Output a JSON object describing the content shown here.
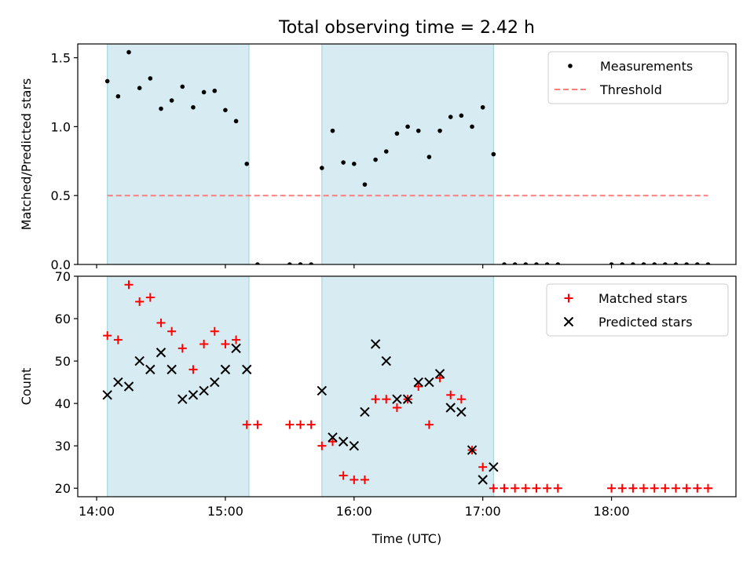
{
  "figure": {
    "title": "Total observing time = 2.42 h"
  },
  "chart_data": [
    {
      "type": "scatter",
      "ylabel": "Matched/Predicted stars",
      "xlabel": "",
      "xlim": [
        "14:00",
        "19:00"
      ],
      "xticks": [
        "14:00",
        "15:00",
        "16:00",
        "17:00",
        "18:00"
      ],
      "ylim": [
        0,
        1.6
      ],
      "yticks": [
        "0.0",
        "0.5",
        "1.0",
        "1.5"
      ],
      "legend": {
        "position": "top-right",
        "entries": [
          "Measurements",
          "Threshold"
        ]
      },
      "observing_windows": [
        [
          "14:05",
          "15:11"
        ],
        [
          "15:45",
          "17:05"
        ]
      ],
      "series": [
        {
          "name": "Measurements",
          "color": "#000000",
          "marker": "dot",
          "x": [
            "14:05",
            "14:10",
            "14:15",
            "14:20",
            "14:25",
            "14:30",
            "14:35",
            "14:40",
            "14:45",
            "14:50",
            "14:55",
            "15:00",
            "15:05",
            "15:10",
            "15:15",
            "15:30",
            "15:35",
            "15:40",
            "15:45",
            "15:50",
            "15:55",
            "16:00",
            "16:05",
            "16:10",
            "16:15",
            "16:20",
            "16:25",
            "16:30",
            "16:35",
            "16:40",
            "16:45",
            "16:50",
            "16:55",
            "17:00",
            "17:05",
            "17:10",
            "17:15",
            "17:20",
            "17:25",
            "17:30",
            "17:35",
            "18:00",
            "18:05",
            "18:10",
            "18:15",
            "18:20",
            "18:25",
            "18:30",
            "18:35",
            "18:40",
            "18:45"
          ],
          "y": [
            1.33,
            1.22,
            1.54,
            1.28,
            1.35,
            1.13,
            1.19,
            1.29,
            1.14,
            1.25,
            1.26,
            1.12,
            1.04,
            0.73,
            0.0,
            0.0,
            0.0,
            0.0,
            0.7,
            0.97,
            0.74,
            0.73,
            0.58,
            0.76,
            0.82,
            0.95,
            1.0,
            0.97,
            0.78,
            0.97,
            1.07,
            1.08,
            1.0,
            1.14,
            0.8,
            0.0,
            0.0,
            0.0,
            0.0,
            0.0,
            0.0,
            0.0,
            0.0,
            0.0,
            0.0,
            0.0,
            0.0,
            0.0,
            0.0,
            0.0,
            0.0
          ]
        },
        {
          "name": "Threshold",
          "color": "#ff7f7f",
          "style": "dashed",
          "x": [
            "14:05",
            "18:45"
          ],
          "y": [
            0.5,
            0.5
          ]
        }
      ]
    },
    {
      "type": "scatter",
      "ylabel": "Count",
      "xlabel": "Time (UTC)",
      "xlim": [
        "14:00",
        "19:00"
      ],
      "xticks": [
        "14:00",
        "15:00",
        "16:00",
        "17:00",
        "18:00"
      ],
      "ylim": [
        18,
        70
      ],
      "yticks": [
        "20",
        "30",
        "40",
        "50",
        "60",
        "70"
      ],
      "legend": {
        "position": "top-right",
        "entries": [
          "Matched stars",
          "Predicted stars"
        ]
      },
      "observing_windows": [
        [
          "14:05",
          "15:11"
        ],
        [
          "15:45",
          "17:05"
        ]
      ],
      "series": [
        {
          "name": "Matched stars",
          "color": "#ff0000",
          "marker": "plus",
          "x": [
            "14:05",
            "14:10",
            "14:15",
            "14:20",
            "14:25",
            "14:30",
            "14:35",
            "14:40",
            "14:45",
            "14:50",
            "14:55",
            "15:00",
            "15:05",
            "15:10",
            "15:15",
            "15:30",
            "15:35",
            "15:40",
            "15:45",
            "15:50",
            "15:55",
            "16:00",
            "16:05",
            "16:10",
            "16:15",
            "16:20",
            "16:25",
            "16:30",
            "16:35",
            "16:40",
            "16:45",
            "16:50",
            "16:55",
            "17:00",
            "17:05",
            "17:10",
            "17:15",
            "17:20",
            "17:25",
            "17:30",
            "17:35",
            "18:00",
            "18:05",
            "18:10",
            "18:15",
            "18:20",
            "18:25",
            "18:30",
            "18:35",
            "18:40",
            "18:45"
          ],
          "y": [
            56,
            55,
            68,
            64,
            65,
            59,
            57,
            53,
            48,
            54,
            57,
            54,
            55,
            35,
            35,
            35,
            35,
            35,
            30,
            31,
            23,
            22,
            22,
            41,
            41,
            39,
            41,
            44,
            35,
            46,
            42,
            41,
            29,
            25,
            20,
            20,
            20,
            20,
            20,
            20,
            20,
            20,
            20,
            20,
            20,
            20,
            20,
            20,
            20,
            20,
            20
          ]
        },
        {
          "name": "Predicted stars",
          "color": "#000000",
          "marker": "x",
          "x": [
            "14:05",
            "14:10",
            "14:15",
            "14:20",
            "14:25",
            "14:30",
            "14:35",
            "14:40",
            "14:45",
            "14:50",
            "14:55",
            "15:00",
            "15:05",
            "15:10",
            "15:45",
            "15:50",
            "15:55",
            "16:00",
            "16:05",
            "16:10",
            "16:15",
            "16:20",
            "16:25",
            "16:30",
            "16:35",
            "16:40",
            "16:45",
            "16:50",
            "16:55",
            "17:00",
            "17:05"
          ],
          "y": [
            42,
            45,
            44,
            50,
            48,
            52,
            48,
            41,
            42,
            43,
            45,
            48,
            53,
            48,
            43,
            32,
            31,
            30,
            38,
            54,
            50,
            41,
            41,
            45,
            45,
            47,
            39,
            38,
            29,
            22,
            25
          ]
        }
      ]
    }
  ]
}
